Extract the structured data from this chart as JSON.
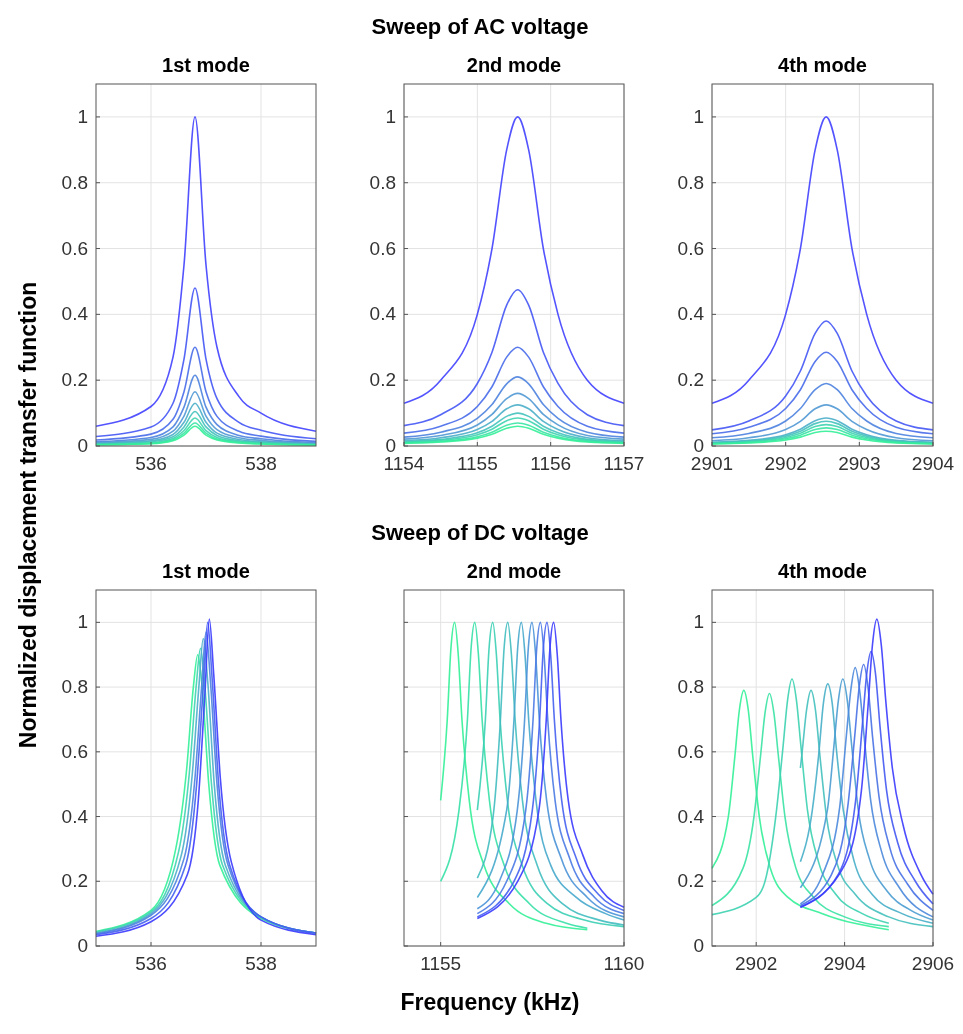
{
  "chart_data": [
    {
      "type": "line",
      "title": "1st mode",
      "ylabel": "Normalized displacement transfer function",
      "annotations": [
        "Sweep of AC voltage"
      ],
      "xlim": [
        535,
        539
      ],
      "xticks": [
        536,
        538
      ],
      "ylim": [
        0,
        1.1
      ],
      "yticks": [
        0,
        0.2,
        0.4,
        0.6,
        0.8,
        1
      ],
      "grid": true,
      "x": [
        535,
        536,
        536.4,
        536.6,
        536.8,
        537.0,
        537.2,
        537.6,
        538,
        539
      ],
      "series": [
        {
          "color": "#4040ff",
          "values": [
            0.06,
            0.12,
            0.27,
            0.55,
            1,
            0.55,
            0.3,
            0.15,
            0.1,
            0.045
          ]
        },
        {
          "color": "#4456f5",
          "values": [
            0.029,
            0.058,
            0.13,
            0.264,
            0.48,
            0.264,
            0.144,
            0.072,
            0.048,
            0.022
          ]
        },
        {
          "color": "#486cea",
          "values": [
            0.018,
            0.036,
            0.081,
            0.165,
            0.3,
            0.165,
            0.09,
            0.045,
            0.03,
            0.014
          ]
        },
        {
          "color": "#4c82df",
          "values": [
            0.013,
            0.026,
            0.058,
            0.118,
            0.215,
            0.118,
            0.065,
            0.032,
            0.022,
            0.01
          ]
        },
        {
          "color": "#5098d4",
          "values": [
            0.01,
            0.02,
            0.045,
            0.091,
            0.165,
            0.091,
            0.05,
            0.025,
            0.017,
            0.007
          ]
        },
        {
          "color": "#4aaec9",
          "values": [
            0.008,
            0.016,
            0.035,
            0.072,
            0.13,
            0.072,
            0.039,
            0.02,
            0.013,
            0.006
          ]
        },
        {
          "color": "#44c2bd",
          "values": [
            0.006,
            0.013,
            0.028,
            0.058,
            0.105,
            0.058,
            0.032,
            0.016,
            0.011,
            0.005
          ]
        },
        {
          "color": "#3ed4b0",
          "values": [
            0.005,
            0.01,
            0.023,
            0.047,
            0.085,
            0.047,
            0.026,
            0.013,
            0.009,
            0.004
          ]
        },
        {
          "color": "#38e4a4",
          "values": [
            0.004,
            0.008,
            0.019,
            0.039,
            0.07,
            0.039,
            0.021,
            0.011,
            0.007,
            0.003
          ]
        },
        {
          "color": "#33f098",
          "values": [
            0.004,
            0.007,
            0.016,
            0.033,
            0.06,
            0.033,
            0.018,
            0.009,
            0.006,
            0.003
          ]
        }
      ]
    },
    {
      "type": "line",
      "title": "2nd mode",
      "xlim": [
        1154,
        1157
      ],
      "xticks": [
        1154,
        1155,
        1156,
        1157
      ],
      "ylim": [
        0,
        1.1
      ],
      "yticks": [
        0,
        0.2,
        0.4,
        0.6,
        0.8,
        1
      ],
      "grid": true,
      "x": [
        1154,
        1154.5,
        1155,
        1155.2,
        1155.4,
        1155.55,
        1155.7,
        1155.9,
        1156.1,
        1156.5,
        1157
      ],
      "series": [
        {
          "color": "#4040ff",
          "values": [
            0.13,
            0.2,
            0.4,
            0.6,
            0.9,
            1,
            0.9,
            0.6,
            0.4,
            0.2,
            0.13
          ]
        },
        {
          "color": "#4456f5",
          "values": [
            0.062,
            0.095,
            0.19,
            0.285,
            0.428,
            0.475,
            0.428,
            0.285,
            0.19,
            0.095,
            0.062
          ]
        },
        {
          "color": "#486cea",
          "values": [
            0.039,
            0.06,
            0.12,
            0.18,
            0.27,
            0.3,
            0.27,
            0.18,
            0.12,
            0.06,
            0.039
          ]
        },
        {
          "color": "#4c82df",
          "values": [
            0.027,
            0.042,
            0.084,
            0.126,
            0.189,
            0.21,
            0.189,
            0.126,
            0.084,
            0.042,
            0.027
          ]
        },
        {
          "color": "#5098d4",
          "values": [
            0.021,
            0.032,
            0.064,
            0.096,
            0.144,
            0.16,
            0.144,
            0.096,
            0.064,
            0.032,
            0.021
          ]
        },
        {
          "color": "#4aaec9",
          "values": [
            0.016,
            0.025,
            0.05,
            0.075,
            0.113,
            0.125,
            0.113,
            0.075,
            0.05,
            0.025,
            0.016
          ]
        },
        {
          "color": "#44c2bd",
          "values": [
            0.013,
            0.02,
            0.04,
            0.06,
            0.09,
            0.1,
            0.09,
            0.06,
            0.04,
            0.02,
            0.013
          ]
        },
        {
          "color": "#3ed4b0",
          "values": [
            0.011,
            0.017,
            0.034,
            0.051,
            0.077,
            0.085,
            0.077,
            0.051,
            0.034,
            0.017,
            0.011
          ]
        },
        {
          "color": "#38e4a4",
          "values": [
            0.009,
            0.014,
            0.028,
            0.042,
            0.063,
            0.07,
            0.063,
            0.042,
            0.028,
            0.014,
            0.009
          ]
        },
        {
          "color": "#33f098",
          "values": [
            0.008,
            0.012,
            0.024,
            0.036,
            0.054,
            0.06,
            0.054,
            0.036,
            0.024,
            0.012,
            0.008
          ]
        }
      ]
    },
    {
      "type": "line",
      "title": "4th mode",
      "xlim": [
        2901,
        2904
      ],
      "xticks": [
        2901,
        2902,
        2903,
        2904
      ],
      "ylim": [
        0,
        1.1
      ],
      "yticks": [
        0,
        0.2,
        0.4,
        0.6,
        0.8,
        1
      ],
      "grid": true,
      "x": [
        2901,
        2901.5,
        2902,
        2902.2,
        2902.4,
        2902.55,
        2902.7,
        2902.9,
        2903.1,
        2903.5,
        2904
      ],
      "series": [
        {
          "color": "#4040ff",
          "values": [
            0.13,
            0.2,
            0.4,
            0.6,
            0.9,
            1,
            0.9,
            0.6,
            0.4,
            0.2,
            0.13
          ]
        },
        {
          "color": "#4456f5",
          "values": [
            0.049,
            0.076,
            0.152,
            0.228,
            0.342,
            0.38,
            0.342,
            0.228,
            0.152,
            0.076,
            0.049
          ]
        },
        {
          "color": "#486cea",
          "values": [
            0.037,
            0.057,
            0.114,
            0.171,
            0.257,
            0.285,
            0.257,
            0.171,
            0.114,
            0.057,
            0.037
          ]
        },
        {
          "color": "#4c82df",
          "values": [
            0.025,
            0.038,
            0.076,
            0.114,
            0.171,
            0.19,
            0.171,
            0.114,
            0.076,
            0.038,
            0.025
          ]
        },
        {
          "color": "#5098d4",
          "values": [
            0.016,
            0.025,
            0.05,
            0.075,
            0.113,
            0.125,
            0.113,
            0.075,
            0.05,
            0.025,
            0.016
          ]
        },
        {
          "color": "#4aaec9",
          "values": [
            0.011,
            0.017,
            0.034,
            0.051,
            0.077,
            0.085,
            0.077,
            0.051,
            0.034,
            0.017,
            0.011
          ]
        },
        {
          "color": "#44c2bd",
          "values": [
            0.01,
            0.015,
            0.03,
            0.045,
            0.068,
            0.075,
            0.068,
            0.045,
            0.03,
            0.015,
            0.01
          ]
        },
        {
          "color": "#3ed4b0",
          "values": [
            0.008,
            0.013,
            0.026,
            0.039,
            0.059,
            0.065,
            0.059,
            0.039,
            0.026,
            0.013,
            0.008
          ]
        },
        {
          "color": "#38e4a4",
          "values": [
            0.007,
            0.011,
            0.022,
            0.033,
            0.05,
            0.055,
            0.05,
            0.033,
            0.022,
            0.011,
            0.007
          ]
        },
        {
          "color": "#33f098",
          "values": [
            0.006,
            0.009,
            0.018,
            0.027,
            0.041,
            0.045,
            0.041,
            0.027,
            0.018,
            0.009,
            0.006
          ]
        }
      ]
    },
    {
      "type": "line",
      "title": "1st mode",
      "xlim": [
        535,
        539
      ],
      "xticks": [
        536,
        538
      ],
      "ylim": [
        0,
        1.1
      ],
      "yticks": [
        0,
        0.2,
        0.4,
        0.6,
        0.8,
        1
      ],
      "grid": true,
      "series": [
        {
          "color": "#33f098",
          "x": [
            535,
            536,
            536.45,
            536.65,
            536.77,
            536.85,
            536.93,
            537.05,
            537.25,
            538,
            539
          ],
          "values": [
            0.045,
            0.11,
            0.3,
            0.55,
            0.8,
            0.9,
            0.8,
            0.5,
            0.25,
            0.085,
            0.04
          ]
        },
        {
          "color": "#3ed4b0",
          "x": [
            535,
            536,
            536.5,
            536.7,
            536.82,
            536.9,
            536.98,
            537.1,
            537.3,
            538,
            539
          ],
          "values": [
            0.043,
            0.105,
            0.29,
            0.54,
            0.8,
            0.92,
            0.8,
            0.5,
            0.25,
            0.088,
            0.04
          ]
        },
        {
          "color": "#4aaec9",
          "x": [
            535,
            536,
            536.55,
            536.75,
            536.87,
            536.95,
            537.03,
            537.15,
            537.35,
            538,
            539
          ],
          "values": [
            0.04,
            0.1,
            0.28,
            0.53,
            0.8,
            0.95,
            0.82,
            0.5,
            0.25,
            0.09,
            0.04
          ]
        },
        {
          "color": "#4c82df",
          "x": [
            535,
            536,
            536.6,
            536.8,
            536.92,
            537,
            537.08,
            537.2,
            537.4,
            538,
            539
          ],
          "values": [
            0.038,
            0.095,
            0.27,
            0.52,
            0.8,
            0.97,
            0.82,
            0.5,
            0.25,
            0.09,
            0.04
          ]
        },
        {
          "color": "#4460f0",
          "x": [
            535,
            536,
            536.63,
            536.83,
            536.95,
            537.03,
            537.11,
            537.23,
            537.43,
            538,
            539
          ],
          "values": [
            0.035,
            0.085,
            0.25,
            0.5,
            0.8,
            1,
            0.83,
            0.5,
            0.25,
            0.09,
            0.04
          ]
        },
        {
          "color": "#3a3aff",
          "x": [
            535,
            536,
            536.66,
            536.86,
            536.98,
            537.06,
            537.14,
            537.26,
            537.46,
            538,
            539
          ],
          "values": [
            0.03,
            0.075,
            0.22,
            0.45,
            0.78,
            1.01,
            0.84,
            0.52,
            0.26,
            0.08,
            0.035
          ]
        }
      ]
    },
    {
      "type": "line",
      "title": "2nd mode",
      "xlabel": "Frequency (kHz)",
      "annotations": [
        "Sweep of DC voltage"
      ],
      "xlim": [
        1154,
        1160
      ],
      "xticks": [
        1155,
        1160
      ],
      "ylim": [
        0,
        1.1
      ],
      "yticks": [
        0,
        0.2,
        0.4,
        0.6,
        0.8,
        1
      ],
      "grid": true,
      "tick_labels": "x",
      "series": [
        {
          "color": "#33f098",
          "x": [
            1155,
            1155.18,
            1155.28,
            1155.38,
            1155.48,
            1155.58,
            1155.78,
            1156.18,
            1156.88,
            1157.88,
            1159
          ],
          "values": [
            0.45,
            0.7,
            0.92,
            1,
            0.9,
            0.7,
            0.45,
            0.25,
            0.13,
            0.07,
            0.05
          ]
        },
        {
          "color": "#36e0a6",
          "x": [
            1155,
            1155.5,
            1155.73,
            1155.83,
            1155.93,
            1156.03,
            1156.13,
            1156.33,
            1156.73,
            1157.43,
            1158.43,
            1159
          ],
          "values": [
            0.2,
            0.42,
            0.7,
            0.92,
            1,
            0.9,
            0.7,
            0.45,
            0.25,
            0.13,
            0.07,
            0.055
          ]
        },
        {
          "color": "#3acfb4",
          "x": [
            1156,
            1156.22,
            1156.32,
            1156.42,
            1156.52,
            1156.62,
            1156.82,
            1157.22,
            1157.92,
            1158.92,
            1160
          ],
          "values": [
            0.42,
            0.7,
            0.92,
            1,
            0.9,
            0.7,
            0.45,
            0.25,
            0.13,
            0.08,
            0.06
          ]
        },
        {
          "color": "#40bcc0",
          "x": [
            1156,
            1156.43,
            1156.63,
            1156.73,
            1156.83,
            1156.93,
            1157.03,
            1157.23,
            1157.63,
            1158.33,
            1159.33,
            1160
          ],
          "values": [
            0.21,
            0.4,
            0.7,
            0.92,
            1,
            0.9,
            0.7,
            0.45,
            0.25,
            0.13,
            0.08,
            0.065
          ]
        },
        {
          "color": "#46a8cc",
          "x": [
            1156,
            1156.8,
            1157,
            1157.1,
            1157.2,
            1157.3,
            1157.4,
            1157.6,
            1158,
            1158.7,
            1159.5,
            1160
          ],
          "values": [
            0.15,
            0.42,
            0.7,
            0.92,
            1,
            0.9,
            0.7,
            0.45,
            0.25,
            0.15,
            0.1,
            0.08
          ]
        },
        {
          "color": "#4a92d8",
          "x": [
            1156,
            1156.6,
            1157.09,
            1157.29,
            1157.39,
            1157.49,
            1157.59,
            1157.69,
            1157.89,
            1158.29,
            1159,
            1160
          ],
          "values": [
            0.115,
            0.2,
            0.42,
            0.7,
            0.92,
            1,
            0.9,
            0.7,
            0.45,
            0.27,
            0.15,
            0.09
          ]
        },
        {
          "color": "#4a7ae4",
          "x": [
            1156,
            1156.8,
            1157.32,
            1157.52,
            1157.62,
            1157.72,
            1157.82,
            1157.92,
            1158.12,
            1158.52,
            1159.2,
            1160
          ],
          "values": [
            0.1,
            0.2,
            0.42,
            0.7,
            0.92,
            1,
            0.9,
            0.7,
            0.45,
            0.27,
            0.15,
            0.1
          ]
        },
        {
          "color": "#4460f0",
          "x": [
            1156,
            1157,
            1157.5,
            1157.7,
            1157.8,
            1157.9,
            1158,
            1158.1,
            1158.3,
            1158.7,
            1159.3,
            1160
          ],
          "values": [
            0.09,
            0.2,
            0.42,
            0.7,
            0.92,
            1,
            0.9,
            0.7,
            0.45,
            0.27,
            0.16,
            0.11
          ]
        },
        {
          "color": "#3a3aff",
          "x": [
            1156,
            1157.1,
            1157.68,
            1157.88,
            1157.98,
            1158.08,
            1158.18,
            1158.28,
            1158.48,
            1158.88,
            1159.4,
            1160
          ],
          "values": [
            0.085,
            0.2,
            0.42,
            0.7,
            0.92,
            1,
            0.9,
            0.7,
            0.45,
            0.28,
            0.17,
            0.12
          ]
        }
      ]
    },
    {
      "type": "line",
      "title": "4th mode",
      "xlim": [
        2901,
        2906
      ],
      "xticks": [
        2902,
        2904,
        2906
      ],
      "ylim": [
        0,
        1.1
      ],
      "yticks": [
        0,
        0.2,
        0.4,
        0.6,
        0.8,
        1
      ],
      "grid": true,
      "series": [
        {
          "color": "#33f098",
          "x": [
            2901,
            2901.37,
            2901.52,
            2901.62,
            2901.72,
            2901.82,
            2901.92,
            2902.07,
            2902.32,
            2902.72,
            2903.5,
            2905
          ],
          "values": [
            0.24,
            0.4,
            0.59,
            0.73,
            0.79,
            0.73,
            0.59,
            0.4,
            0.24,
            0.15,
            0.1,
            0.05
          ]
        },
        {
          "color": "#38e2a3",
          "x": [
            2901,
            2901.7,
            2901.95,
            2902.1,
            2902.2,
            2902.3,
            2902.4,
            2902.5,
            2902.65,
            2902.9,
            2903.3,
            2904,
            2905
          ],
          "values": [
            0.125,
            0.24,
            0.4,
            0.59,
            0.72,
            0.78,
            0.72,
            0.59,
            0.4,
            0.24,
            0.15,
            0.09,
            0.06
          ]
        },
        {
          "color": "#3cd2b0",
          "x": [
            2901,
            2902,
            2902.2,
            2902.46,
            2902.61,
            2902.71,
            2902.81,
            2902.91,
            2903.01,
            2903.16,
            2903.41,
            2903.8,
            2904.4,
            2905
          ],
          "values": [
            0.097,
            0.15,
            0.2,
            0.42,
            0.62,
            0.76,
            0.825,
            0.76,
            0.62,
            0.42,
            0.26,
            0.16,
            0.1,
            0.07
          ]
        },
        {
          "color": "#42c0bc",
          "x": [
            2903,
            2903.04,
            2903.14,
            2903.24,
            2903.34,
            2903.44,
            2903.59,
            2903.84,
            2904.24,
            2905,
            2906
          ],
          "values": [
            0.55,
            0.6,
            0.73,
            0.79,
            0.73,
            0.59,
            0.4,
            0.25,
            0.16,
            0.09,
            0.06
          ]
        },
        {
          "color": "#46aec8",
          "x": [
            2903,
            2903.27,
            2903.42,
            2903.52,
            2903.62,
            2903.72,
            2903.82,
            2903.97,
            2904.22,
            2904.62,
            2905.3,
            2906
          ],
          "values": [
            0.26,
            0.42,
            0.6,
            0.75,
            0.81,
            0.75,
            0.6,
            0.42,
            0.26,
            0.16,
            0.1,
            0.07
          ]
        },
        {
          "color": "#4a9cd2",
          "x": [
            2903,
            2903.61,
            2903.76,
            2903.86,
            2903.96,
            2904.06,
            2904.16,
            2904.31,
            2904.56,
            2904.96,
            2905.5,
            2906
          ],
          "values": [
            0.18,
            0.42,
            0.62,
            0.76,
            0.825,
            0.76,
            0.62,
            0.42,
            0.27,
            0.17,
            0.11,
            0.08
          ]
        },
        {
          "color": "#4b88dc",
          "x": [
            2903,
            2903.5,
            2903.89,
            2904.04,
            2904.14,
            2904.24,
            2904.34,
            2904.44,
            2904.59,
            2904.84,
            2905.24,
            2906
          ],
          "values": [
            0.13,
            0.22,
            0.43,
            0.65,
            0.79,
            0.86,
            0.79,
            0.65,
            0.45,
            0.29,
            0.18,
            0.09
          ]
        },
        {
          "color": "#4872e6",
          "x": [
            2903,
            2903.7,
            2904.08,
            2904.23,
            2904.33,
            2904.43,
            2904.53,
            2904.63,
            2904.78,
            2905.03,
            2905.43,
            2906
          ],
          "values": [
            0.125,
            0.22,
            0.44,
            0.65,
            0.8,
            0.87,
            0.8,
            0.65,
            0.46,
            0.3,
            0.19,
            0.11
          ]
        },
        {
          "color": "#4258f2",
          "x": [
            2903,
            2903.85,
            2904.25,
            2904.4,
            2904.5,
            2904.6,
            2904.7,
            2904.8,
            2904.95,
            2905.2,
            2905.6,
            2906
          ],
          "values": [
            0.12,
            0.22,
            0.45,
            0.68,
            0.84,
            0.91,
            0.84,
            0.68,
            0.48,
            0.32,
            0.2,
            0.13
          ]
        },
        {
          "color": "#3a3aff",
          "x": [
            2903,
            2904,
            2904.38,
            2904.53,
            2904.63,
            2904.73,
            2904.83,
            2904.93,
            2905.08,
            2905.33,
            2905.73,
            2906
          ],
          "values": [
            0.12,
            0.25,
            0.48,
            0.74,
            0.93,
            1.01,
            0.93,
            0.76,
            0.55,
            0.37,
            0.22,
            0.16
          ]
        }
      ]
    }
  ]
}
